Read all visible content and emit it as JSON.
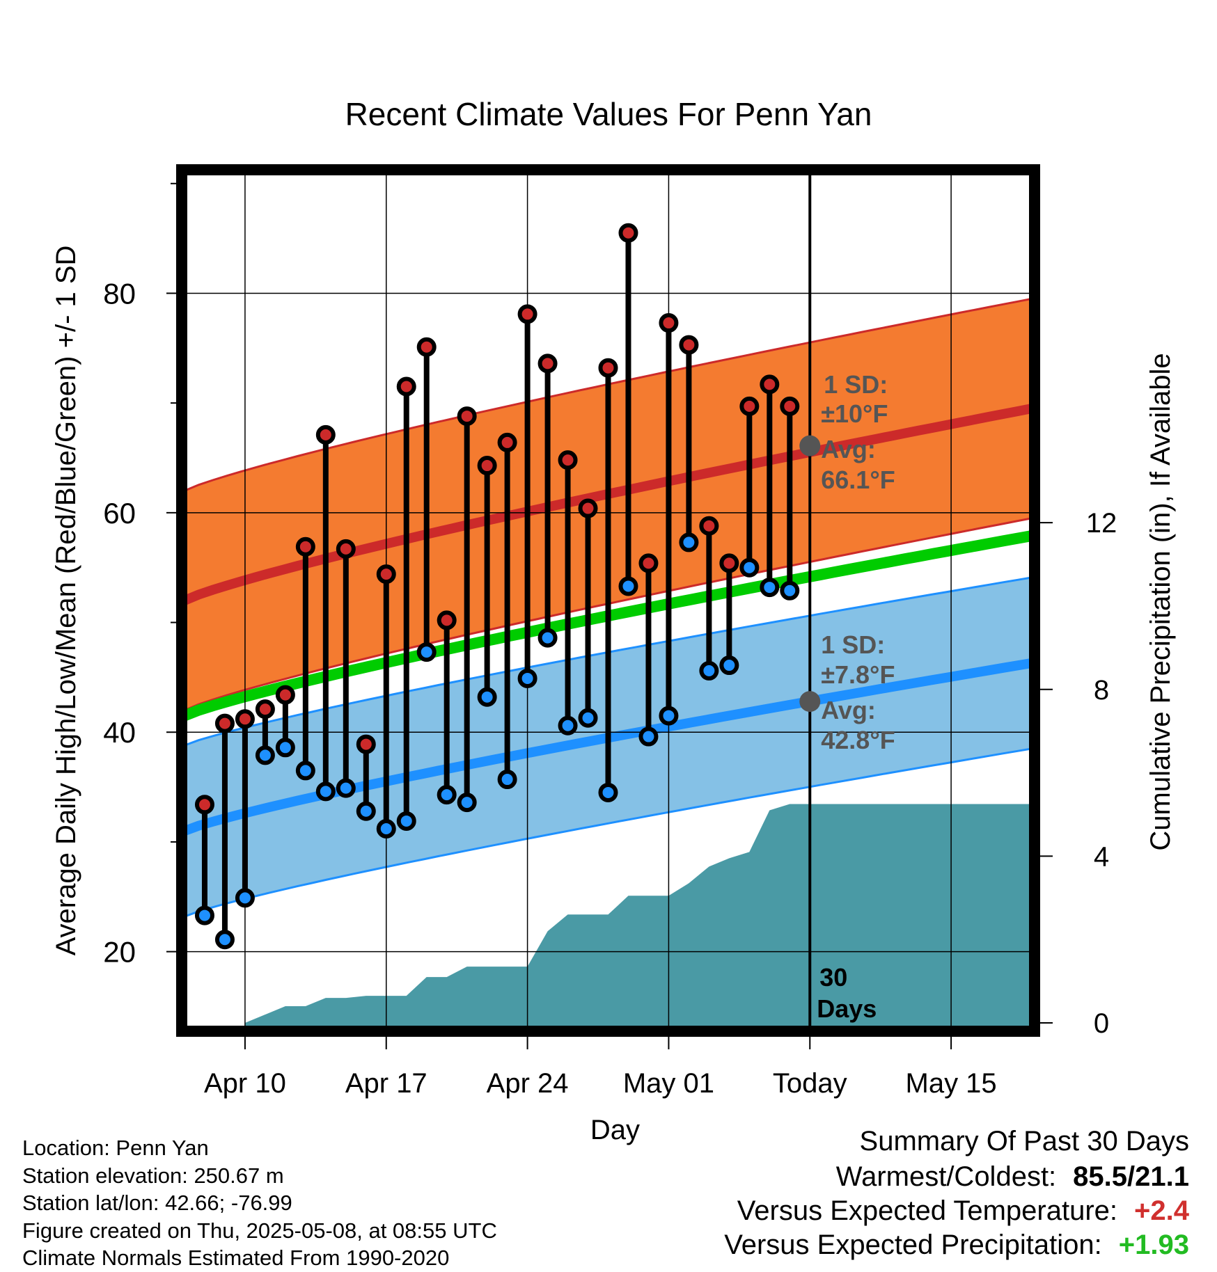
{
  "colors": {
    "high": "#cc2a2a",
    "low": "#1e90ff",
    "mean": "#00cc00",
    "high_band": "#f47b30",
    "low_band": "#85c1e6",
    "precip": "#4a9aa5",
    "annotation": "#555555",
    "positive_temp": "#d0302e",
    "positive_precip": "#22bb22"
  },
  "chart_data": {
    "type": "line",
    "title": "Recent Climate Values For Penn Yan",
    "xlabel": "Day",
    "ylabel": "Average Daily High/Low/Mean (Red/Blue/Green) +/- 1 SD",
    "y2label": "Cumulative Precipitation (in), If Available",
    "x_start": "2025-04-07",
    "x_end": "2025-05-19",
    "today": "2025-05-08",
    "ylim": [
      13,
      91
    ],
    "y_ticks": [
      20,
      40,
      60,
      80
    ],
    "y2lim": [
      0,
      20.4
    ],
    "y2_ticks": [
      0,
      4,
      8,
      12
    ],
    "x_ticks": [
      {
        "date": "2025-04-10",
        "label": "Apr 10"
      },
      {
        "date": "2025-04-17",
        "label": "Apr 17"
      },
      {
        "date": "2025-04-24",
        "label": "Apr 24"
      },
      {
        "date": "2025-05-01",
        "label": "May 01"
      },
      {
        "date": "2025-05-08",
        "label": "Today"
      },
      {
        "date": "2025-05-15",
        "label": "May 15"
      }
    ],
    "grid": true,
    "dates": [
      "2025-04-08",
      "2025-04-09",
      "2025-04-10",
      "2025-04-11",
      "2025-04-12",
      "2025-04-13",
      "2025-04-14",
      "2025-04-15",
      "2025-04-16",
      "2025-04-17",
      "2025-04-18",
      "2025-04-19",
      "2025-04-20",
      "2025-04-21",
      "2025-04-22",
      "2025-04-23",
      "2025-04-24",
      "2025-04-25",
      "2025-04-26",
      "2025-04-27",
      "2025-04-28",
      "2025-04-29",
      "2025-04-30",
      "2025-05-01",
      "2025-05-02",
      "2025-05-03",
      "2025-05-04",
      "2025-05-05",
      "2025-05-06",
      "2025-05-07"
    ],
    "series": [
      {
        "name": "High",
        "values": [
          33.4,
          40.8,
          41.2,
          42.1,
          43.4,
          56.9,
          67.1,
          56.7,
          38.9,
          54.4,
          71.5,
          75.1,
          50.2,
          68.8,
          64.3,
          66.4,
          78.1,
          73.6,
          64.8,
          60.4,
          73.2,
          85.5,
          55.4,
          77.3,
          75.3,
          58.8,
          55.4,
          69.7,
          71.7,
          69.7
        ]
      },
      {
        "name": "Low",
        "values": [
          23.3,
          21.1,
          24.9,
          37.9,
          38.6,
          36.5,
          34.6,
          34.9,
          32.8,
          31.2,
          31.9,
          47.3,
          34.3,
          33.6,
          43.2,
          35.7,
          44.9,
          48.6,
          40.6,
          41.3,
          34.5,
          53.3,
          39.6,
          41.5,
          57.3,
          45.6,
          46.1,
          55.0,
          53.2,
          52.9
        ]
      }
    ],
    "normals": {
      "high_mean": [
        52.0,
        69.5
      ],
      "high_sd": 10,
      "low_mean": [
        31.0,
        46.3
      ],
      "low_sd": 7.8,
      "mean_line": [
        41.5,
        57.9
      ]
    },
    "precip": {
      "dates": [
        "2025-04-10",
        "2025-04-11",
        "2025-04-12",
        "2025-04-13",
        "2025-04-14",
        "2025-04-15",
        "2025-04-16",
        "2025-04-17",
        "2025-04-18",
        "2025-04-19",
        "2025-04-20",
        "2025-04-21",
        "2025-04-22",
        "2025-04-23",
        "2025-04-24",
        "2025-04-25",
        "2025-04-26",
        "2025-04-27",
        "2025-04-28",
        "2025-04-29",
        "2025-04-30",
        "2025-05-01",
        "2025-05-02",
        "2025-05-03",
        "2025-05-04",
        "2025-05-05",
        "2025-05-06",
        "2025-05-07",
        "2025-05-08",
        "2025-05-19"
      ],
      "values": [
        0.0,
        0.2,
        0.4,
        0.4,
        0.6,
        0.6,
        0.65,
        0.65,
        0.65,
        1.1,
        1.1,
        1.35,
        1.35,
        1.35,
        1.35,
        2.2,
        2.6,
        2.6,
        2.6,
        3.05,
        3.05,
        3.05,
        3.35,
        3.75,
        3.95,
        4.1,
        5.1,
        5.25,
        5.25,
        5.25
      ]
    },
    "annotations": {
      "high_sd_label": "1 SD:",
      "high_sd_value": "±10°F",
      "high_avg_label": "Avg:",
      "high_avg_value": "66.1°F",
      "high_avg_point": 66.1,
      "low_sd_label": "1 SD:",
      "low_sd_value": "±7.8°F",
      "low_avg_label": "Avg:",
      "low_avg_value": "42.8°F",
      "low_avg_point": 42.8,
      "days_line1": "30",
      "days_line2": "Days"
    }
  },
  "footer": {
    "location": "Location: Penn Yan",
    "elevation": "Station elevation: 250.67 m",
    "latlon": "Station lat/lon: 42.66; -76.99",
    "created": "Figure created on Thu, 2025-05-08, at 08:55 UTC",
    "normals": "Climate Normals Estimated From 1990-2020"
  },
  "summary": {
    "heading": "Summary Of Past 30 Days",
    "warm_label": "Warmest/Coldest:",
    "warm_value": "85.5/21.1",
    "temp_label": "Versus Expected Temperature:",
    "temp_value": "+2.4",
    "precip_label": "Versus Expected Precipitation:",
    "precip_value": "+1.93"
  }
}
